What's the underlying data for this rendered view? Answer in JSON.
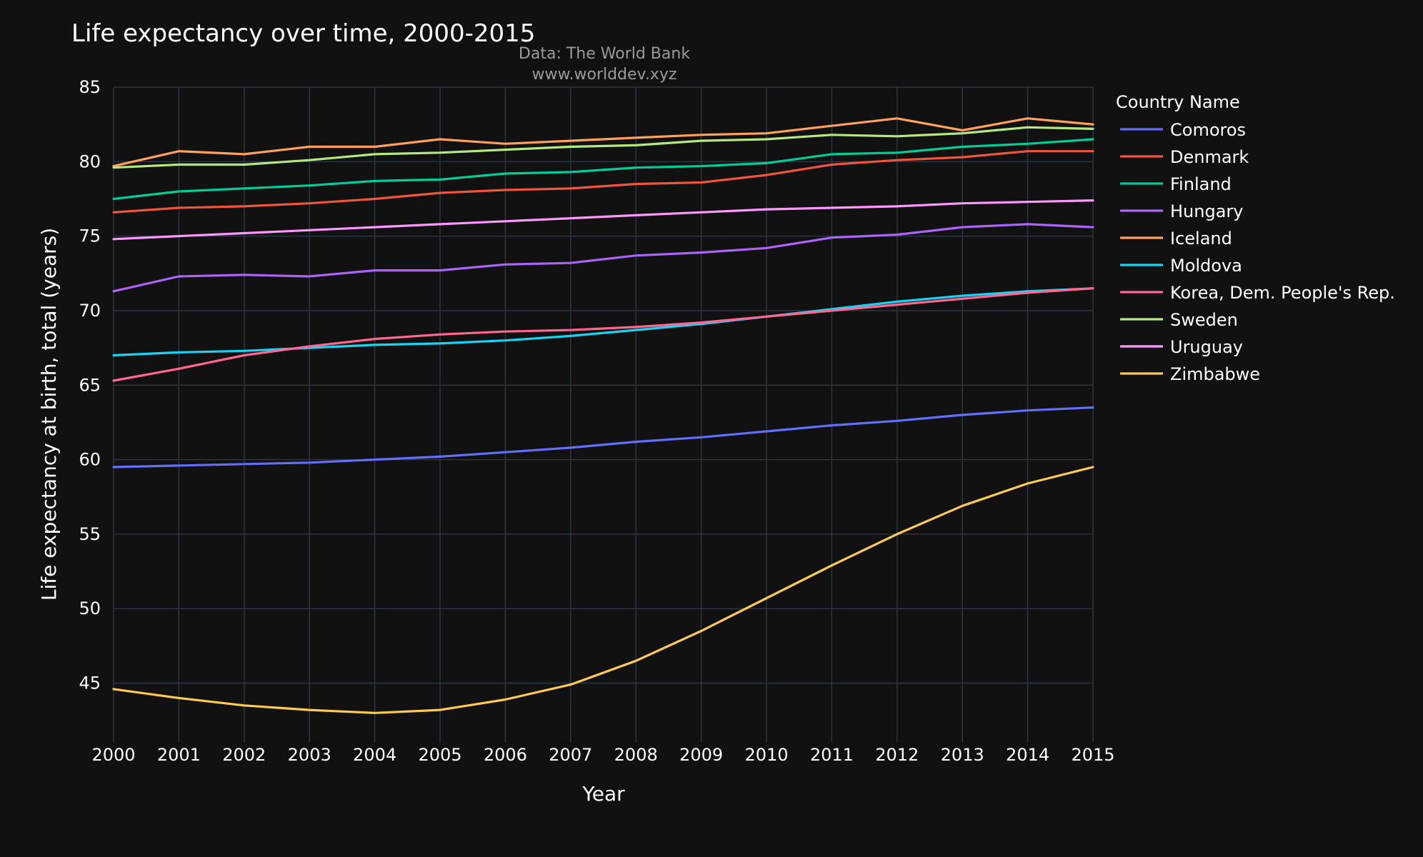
{
  "chart_data": {
    "type": "line",
    "title": "Life expectancy over time, 2000-2015",
    "subtitle_lines": [
      "Data: The World Bank",
      "www.worlddev.xyz"
    ],
    "xlabel": "Year",
    "ylabel": "Life expectancy at birth, total (years)",
    "x": [
      2000,
      2001,
      2002,
      2003,
      2004,
      2005,
      2006,
      2007,
      2008,
      2009,
      2010,
      2011,
      2012,
      2013,
      2014,
      2015
    ],
    "xlim": [
      2000,
      2015
    ],
    "ylim": [
      41,
      85
    ],
    "yticks": [
      45,
      50,
      55,
      60,
      65,
      70,
      75,
      80,
      85
    ],
    "grid": true,
    "legend_title": "Country Name",
    "legend_position": "right",
    "series": [
      {
        "name": "Comoros",
        "color": "#636efa",
        "values": [
          59.5,
          59.6,
          59.7,
          59.8,
          60.0,
          60.2,
          60.5,
          60.8,
          61.2,
          61.5,
          61.9,
          62.3,
          62.6,
          63.0,
          63.3,
          63.5
        ]
      },
      {
        "name": "Denmark",
        "color": "#ef553b",
        "values": [
          76.6,
          76.9,
          77.0,
          77.2,
          77.5,
          77.9,
          78.1,
          78.2,
          78.5,
          78.6,
          79.1,
          79.8,
          80.1,
          80.3,
          80.7,
          80.7
        ]
      },
      {
        "name": "Finland",
        "color": "#00cc96",
        "values": [
          77.5,
          78.0,
          78.2,
          78.4,
          78.7,
          78.8,
          79.2,
          79.3,
          79.6,
          79.7,
          79.9,
          80.5,
          80.6,
          81.0,
          81.2,
          81.5
        ]
      },
      {
        "name": "Hungary",
        "color": "#ab63fa",
        "values": [
          71.3,
          72.3,
          72.4,
          72.3,
          72.7,
          72.7,
          73.1,
          73.2,
          73.7,
          73.9,
          74.2,
          74.9,
          75.1,
          75.6,
          75.8,
          75.6
        ]
      },
      {
        "name": "Iceland",
        "color": "#ffa15a",
        "values": [
          79.7,
          80.7,
          80.5,
          81.0,
          81.0,
          81.5,
          81.2,
          81.4,
          81.6,
          81.8,
          81.9,
          82.4,
          82.9,
          82.1,
          82.9,
          82.5
        ]
      },
      {
        "name": "Moldova",
        "color": "#19d3f3",
        "values": [
          67.0,
          67.2,
          67.3,
          67.5,
          67.7,
          67.8,
          68.0,
          68.3,
          68.7,
          69.1,
          69.6,
          70.1,
          70.6,
          71.0,
          71.3,
          71.5
        ]
      },
      {
        "name": "Korea, Dem. People's Rep.",
        "color": "#ff6692",
        "values": [
          65.3,
          66.1,
          67.0,
          67.6,
          68.1,
          68.4,
          68.6,
          68.7,
          68.9,
          69.2,
          69.6,
          70.0,
          70.4,
          70.8,
          71.2,
          71.5
        ]
      },
      {
        "name": "Sweden",
        "color": "#b6e880",
        "values": [
          79.6,
          79.8,
          79.8,
          80.1,
          80.5,
          80.6,
          80.8,
          81.0,
          81.1,
          81.4,
          81.5,
          81.8,
          81.7,
          81.9,
          82.3,
          82.2
        ]
      },
      {
        "name": "Uruguay",
        "color": "#ff97ff",
        "values": [
          74.8,
          75.0,
          75.2,
          75.4,
          75.6,
          75.8,
          76.0,
          76.2,
          76.4,
          76.6,
          76.8,
          76.9,
          77.0,
          77.2,
          77.3,
          77.4
        ]
      },
      {
        "name": "Zimbabwe",
        "color": "#fecb52",
        "values": [
          44.6,
          44.0,
          43.5,
          43.2,
          43.0,
          43.2,
          43.9,
          44.9,
          46.5,
          48.5,
          50.7,
          52.9,
          55.0,
          56.9,
          58.4,
          59.5
        ]
      }
    ]
  }
}
